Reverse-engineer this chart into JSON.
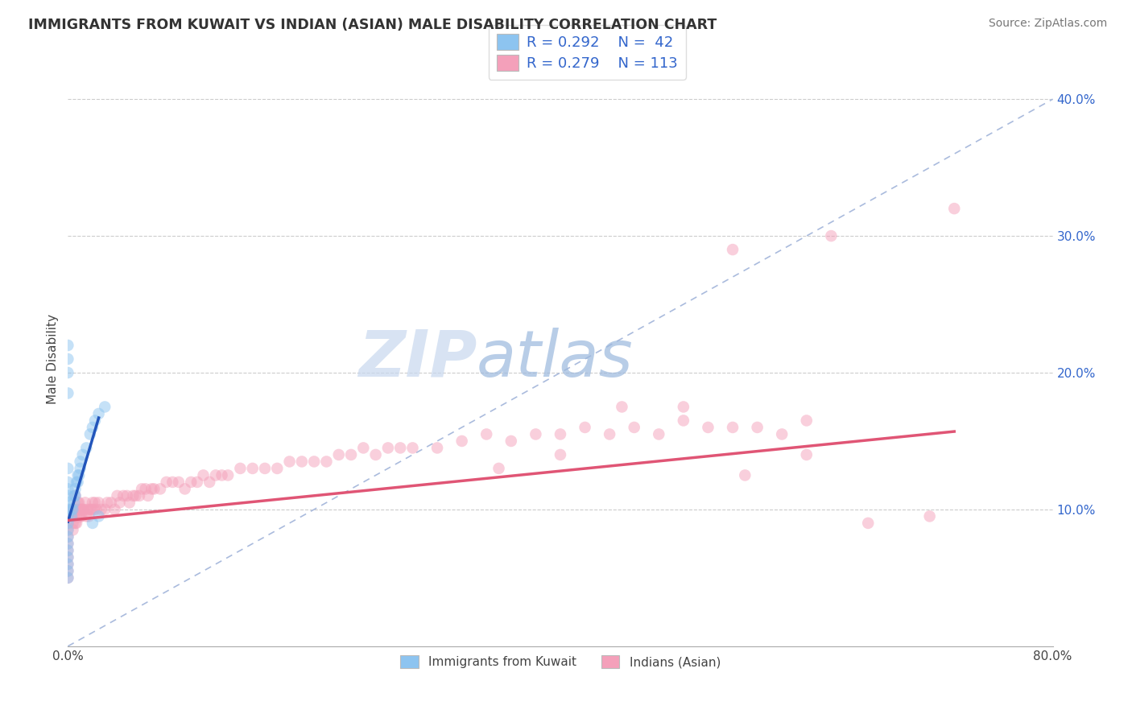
{
  "title": "IMMIGRANTS FROM KUWAIT VS INDIAN (ASIAN) MALE DISABILITY CORRELATION CHART",
  "source": "Source: ZipAtlas.com",
  "ylabel": "Male Disability",
  "xlim": [
    0.0,
    0.8
  ],
  "ylim": [
    0.0,
    0.42
  ],
  "xticks": [
    0.0,
    0.8
  ],
  "xticklabels": [
    "0.0%",
    "80.0%"
  ],
  "yticks_right": [
    0.1,
    0.2,
    0.3,
    0.4
  ],
  "yticklabels_right": [
    "10.0%",
    "20.0%",
    "30.0%",
    "40.0%"
  ],
  "background_color": "#ffffff",
  "legend_r1": "R = 0.292",
  "legend_n1": "N =  42",
  "legend_r2": "R = 0.279",
  "legend_n2": "N = 113",
  "color_blue": "#8DC4F0",
  "color_pink": "#F4A0BA",
  "line_blue": "#2255BB",
  "line_pink": "#E05575",
  "dashed_line_color": "#AABBDD",
  "scatter_alpha": 0.5,
  "scatter_size": 110,
  "kuwait_x": [
    0.0,
    0.0,
    0.0,
    0.0,
    0.0,
    0.0,
    0.0,
    0.0,
    0.0,
    0.0,
    0.0,
    0.0,
    0.0,
    0.0,
    0.0,
    0.0,
    0.0,
    0.0,
    0.0,
    0.0,
    0.003,
    0.003,
    0.004,
    0.005,
    0.005,
    0.006,
    0.006,
    0.007,
    0.008,
    0.008,
    0.009,
    0.01,
    0.01,
    0.012,
    0.015,
    0.018,
    0.02,
    0.022,
    0.025,
    0.03,
    0.02,
    0.025
  ],
  "kuwait_y": [
    0.05,
    0.055,
    0.06,
    0.065,
    0.07,
    0.075,
    0.08,
    0.085,
    0.09,
    0.095,
    0.1,
    0.105,
    0.11,
    0.115,
    0.12,
    0.13,
    0.185,
    0.2,
    0.21,
    0.22,
    0.095,
    0.1,
    0.1,
    0.105,
    0.11,
    0.11,
    0.115,
    0.12,
    0.12,
    0.125,
    0.125,
    0.13,
    0.135,
    0.14,
    0.145,
    0.155,
    0.16,
    0.165,
    0.17,
    0.175,
    0.09,
    0.095
  ],
  "kuwait_line_x": [
    0.0,
    0.025
  ],
  "kuwait_line_y": [
    0.091,
    0.167
  ],
  "indian_x": [
    0.0,
    0.0,
    0.0,
    0.0,
    0.0,
    0.0,
    0.0,
    0.0,
    0.0,
    0.0,
    0.003,
    0.003,
    0.004,
    0.004,
    0.005,
    0.005,
    0.006,
    0.006,
    0.007,
    0.007,
    0.008,
    0.008,
    0.009,
    0.009,
    0.01,
    0.01,
    0.011,
    0.011,
    0.012,
    0.013,
    0.014,
    0.015,
    0.016,
    0.017,
    0.018,
    0.019,
    0.02,
    0.021,
    0.022,
    0.023,
    0.025,
    0.027,
    0.03,
    0.032,
    0.035,
    0.038,
    0.04,
    0.042,
    0.045,
    0.048,
    0.05,
    0.053,
    0.055,
    0.058,
    0.06,
    0.063,
    0.065,
    0.068,
    0.07,
    0.075,
    0.08,
    0.085,
    0.09,
    0.095,
    0.1,
    0.105,
    0.11,
    0.115,
    0.12,
    0.125,
    0.13,
    0.14,
    0.15,
    0.16,
    0.17,
    0.18,
    0.19,
    0.2,
    0.21,
    0.22,
    0.23,
    0.24,
    0.25,
    0.26,
    0.27,
    0.28,
    0.3,
    0.32,
    0.34,
    0.36,
    0.38,
    0.4,
    0.42,
    0.44,
    0.46,
    0.48,
    0.5,
    0.52,
    0.54,
    0.56,
    0.58,
    0.6,
    0.35,
    0.4,
    0.45,
    0.5,
    0.55,
    0.6,
    0.65,
    0.7,
    0.54,
    0.62,
    0.72
  ],
  "indian_y": [
    0.095,
    0.09,
    0.085,
    0.08,
    0.075,
    0.07,
    0.065,
    0.06,
    0.055,
    0.05,
    0.1,
    0.095,
    0.09,
    0.085,
    0.1,
    0.095,
    0.09,
    0.11,
    0.095,
    0.09,
    0.1,
    0.105,
    0.095,
    0.105,
    0.1,
    0.095,
    0.1,
    0.095,
    0.1,
    0.1,
    0.105,
    0.095,
    0.1,
    0.095,
    0.1,
    0.1,
    0.105,
    0.1,
    0.105,
    0.1,
    0.105,
    0.1,
    0.1,
    0.105,
    0.105,
    0.1,
    0.11,
    0.105,
    0.11,
    0.11,
    0.105,
    0.11,
    0.11,
    0.11,
    0.115,
    0.115,
    0.11,
    0.115,
    0.115,
    0.115,
    0.12,
    0.12,
    0.12,
    0.115,
    0.12,
    0.12,
    0.125,
    0.12,
    0.125,
    0.125,
    0.125,
    0.13,
    0.13,
    0.13,
    0.13,
    0.135,
    0.135,
    0.135,
    0.135,
    0.14,
    0.14,
    0.145,
    0.14,
    0.145,
    0.145,
    0.145,
    0.145,
    0.15,
    0.155,
    0.15,
    0.155,
    0.155,
    0.16,
    0.155,
    0.16,
    0.155,
    0.165,
    0.16,
    0.16,
    0.16,
    0.155,
    0.165,
    0.13,
    0.14,
    0.175,
    0.175,
    0.125,
    0.14,
    0.09,
    0.095,
    0.29,
    0.3,
    0.32
  ],
  "indian_line_x": [
    0.0,
    0.72
  ],
  "indian_line_y": [
    0.092,
    0.157
  ]
}
